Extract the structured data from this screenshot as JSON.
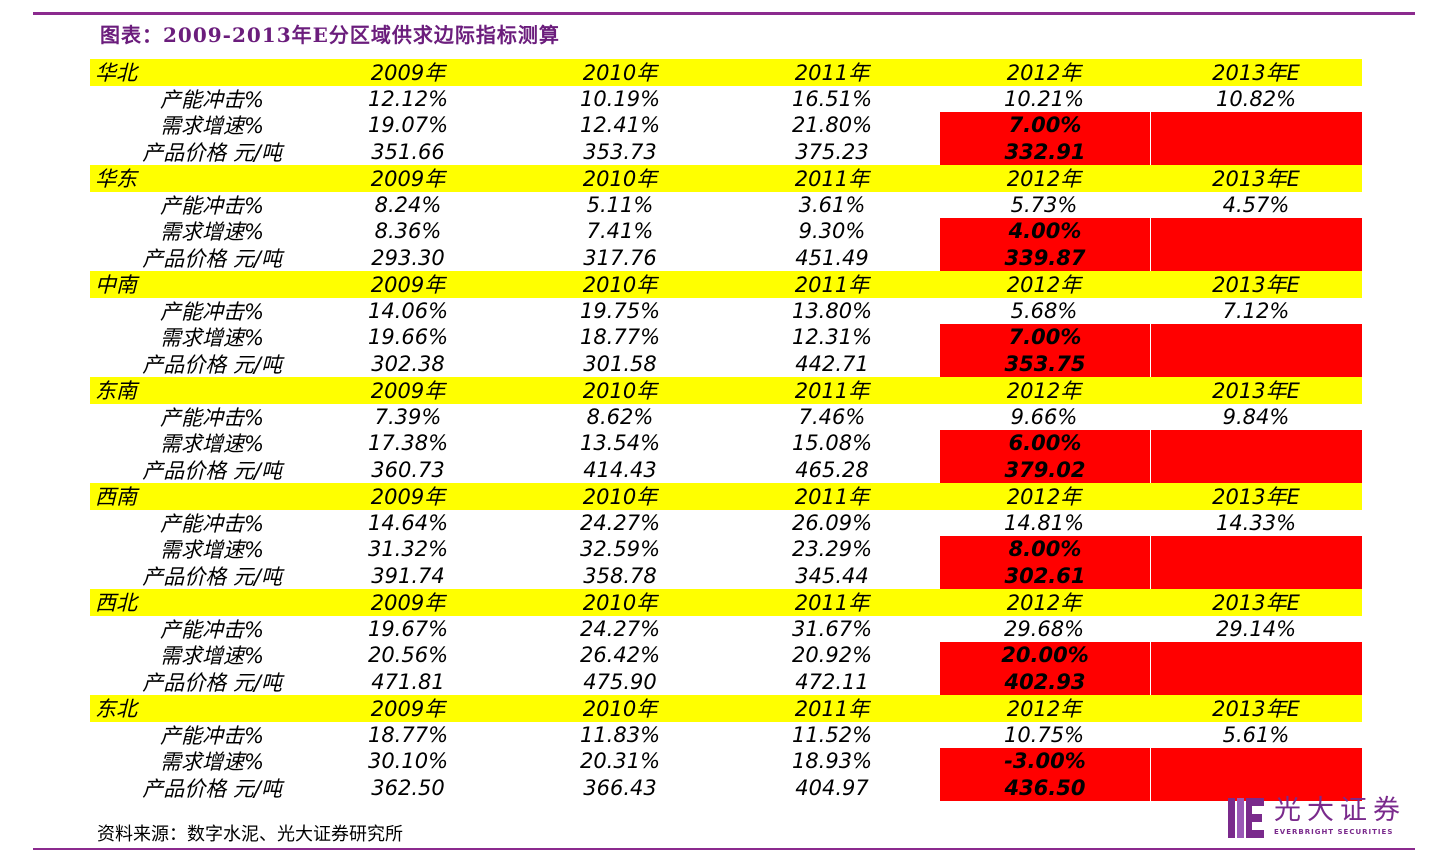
{
  "title": "图表：2009-2013年E分区域供求边际指标测算",
  "source": "资料来源：数字水泥、光大证券研究所",
  "logo": {
    "name_cn": "光大证券",
    "name_en": "EVERBRIGHT SECURITIES"
  },
  "colors": {
    "header_bg": "#ffff00",
    "highlight_bg": "#ff0000",
    "accent": "#8b2a8e"
  },
  "years": [
    "2009年",
    "2010年",
    "2011年",
    "2012年",
    "2013年E"
  ],
  "regions": [
    {
      "name": "华北",
      "rows": [
        {
          "label": "产能冲击%",
          "values": [
            "12.12%",
            "10.19%",
            "16.51%",
            "10.21%",
            "10.82%"
          ]
        },
        {
          "label": "需求增速%",
          "values": [
            "19.07%",
            "12.41%",
            "21.80%",
            "7.00%",
            ""
          ]
        },
        {
          "label": "产品价格 元/吨",
          "values": [
            "351.66",
            "353.73",
            "375.23",
            "332.91",
            ""
          ]
        }
      ]
    },
    {
      "name": "华东",
      "rows": [
        {
          "label": "产能冲击%",
          "values": [
            "8.24%",
            "5.11%",
            "3.61%",
            "5.73%",
            "4.57%"
          ]
        },
        {
          "label": "需求增速%",
          "values": [
            "8.36%",
            "7.41%",
            "9.30%",
            "4.00%",
            ""
          ]
        },
        {
          "label": "产品价格 元/吨",
          "values": [
            "293.30",
            "317.76",
            "451.49",
            "339.87",
            ""
          ]
        }
      ]
    },
    {
      "name": "中南",
      "rows": [
        {
          "label": "产能冲击%",
          "values": [
            "14.06%",
            "19.75%",
            "13.80%",
            "5.68%",
            "7.12%"
          ]
        },
        {
          "label": "需求增速%",
          "values": [
            "19.66%",
            "18.77%",
            "12.31%",
            "7.00%",
            ""
          ]
        },
        {
          "label": "产品价格 元/吨",
          "values": [
            "302.38",
            "301.58",
            "442.71",
            "353.75",
            ""
          ]
        }
      ]
    },
    {
      "name": "东南",
      "rows": [
        {
          "label": "产能冲击%",
          "values": [
            "7.39%",
            "8.62%",
            "7.46%",
            "9.66%",
            "9.84%"
          ]
        },
        {
          "label": "需求增速%",
          "values": [
            "17.38%",
            "13.54%",
            "15.08%",
            "6.00%",
            ""
          ]
        },
        {
          "label": "产品价格 元/吨",
          "values": [
            "360.73",
            "414.43",
            "465.28",
            "379.02",
            ""
          ]
        }
      ]
    },
    {
      "name": "西南",
      "rows": [
        {
          "label": "产能冲击%",
          "values": [
            "14.64%",
            "24.27%",
            "26.09%",
            "14.81%",
            "14.33%"
          ]
        },
        {
          "label": "需求增速%",
          "values": [
            "31.32%",
            "32.59%",
            "23.29%",
            "8.00%",
            ""
          ]
        },
        {
          "label": "产品价格 元/吨",
          "values": [
            "391.74",
            "358.78",
            "345.44",
            "302.61",
            ""
          ]
        }
      ]
    },
    {
      "name": "西北",
      "rows": [
        {
          "label": "产能冲击%",
          "values": [
            "19.67%",
            "24.27%",
            "31.67%",
            "29.68%",
            "29.14%"
          ]
        },
        {
          "label": "需求增速%",
          "values": [
            "20.56%",
            "26.42%",
            "20.92%",
            "20.00%",
            ""
          ]
        },
        {
          "label": "产品价格 元/吨",
          "values": [
            "471.81",
            "475.90",
            "472.11",
            "402.93",
            ""
          ]
        }
      ]
    },
    {
      "name": "东北",
      "rows": [
        {
          "label": "产能冲击%",
          "values": [
            "18.77%",
            "11.83%",
            "11.52%",
            "10.75%",
            "5.61%"
          ]
        },
        {
          "label": "需求增速%",
          "values": [
            "30.10%",
            "20.31%",
            "18.93%",
            "-3.00%",
            ""
          ]
        },
        {
          "label": "产品价格 元/吨",
          "values": [
            "362.50",
            "366.43",
            "404.97",
            "436.50",
            ""
          ]
        }
      ]
    }
  ]
}
